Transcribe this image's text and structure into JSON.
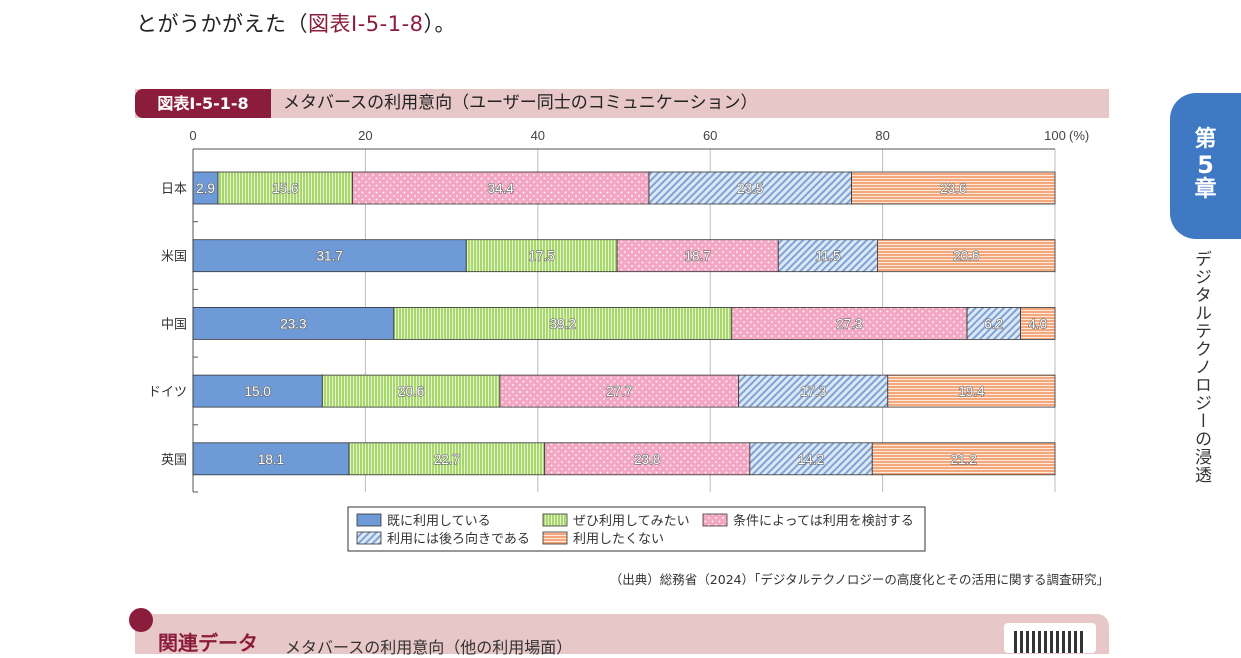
{
  "intro": {
    "text": "とがうかがえた（",
    "ref": "図表Ⅰ-5-1-8",
    "tail": "）。"
  },
  "figure": {
    "badge": "図表Ⅰ-5-1-8",
    "title": "メタバースの利用意向（ユーザー同士のコミュニケーション）"
  },
  "source": "（出典）総務省（2024）「デジタルテクノロジーの高度化とその活用に関する調査研究」",
  "chapter": {
    "line1": "第",
    "line2": "5",
    "line3": "章",
    "name": "デジタルテクノロジーの浸透"
  },
  "related": {
    "label": "関連データ",
    "text": "メタバースの利用意向（他の利用場面）"
  },
  "chart_data": {
    "type": "bar",
    "orientation": "horizontal",
    "stacked": true,
    "xlim": [
      0,
      100
    ],
    "xticks": [
      "0",
      "20",
      "40",
      "60",
      "80",
      "100"
    ],
    "unit_label": "(%)",
    "categories": [
      "日本",
      "米国",
      "中国",
      "ドイツ",
      "英国"
    ],
    "series": [
      {
        "name": "既に利用している",
        "color": "#6e9bd8",
        "pattern": "solid",
        "values": [
          2.9,
          31.7,
          23.3,
          15.0,
          18.1
        ]
      },
      {
        "name": "ぜひ利用してみたい",
        "color": "#a8d86b",
        "pattern": "vlines",
        "values": [
          15.6,
          17.5,
          39.2,
          20.6,
          22.7
        ]
      },
      {
        "name": "条件によっては利用を検討する",
        "color": "#f3a7c3",
        "pattern": "dots",
        "values": [
          34.4,
          18.7,
          27.3,
          27.7,
          23.8
        ]
      },
      {
        "name": "利用には後ろ向きである",
        "color": "#a9c3e8",
        "pattern": "diag",
        "values": [
          23.5,
          11.5,
          6.2,
          17.3,
          14.2
        ]
      },
      {
        "name": "利用したくない",
        "color": "#f4a77a",
        "pattern": "hlines",
        "values": [
          23.6,
          20.6,
          4.0,
          19.4,
          21.2
        ]
      }
    ],
    "value_labels": [
      [
        "2.9",
        "15.6",
        "34.4",
        "23.5",
        "23.6"
      ],
      [
        "31.7",
        "17.5",
        "18.7",
        "11.5",
        "20.6"
      ],
      [
        "23.3",
        "39.2",
        "27.3",
        "6.2",
        "4.0"
      ],
      [
        "15.0",
        "20.6",
        "27.7",
        "17.3",
        "19.4"
      ],
      [
        "18.1",
        "22.7",
        "23.8",
        "14.2",
        "21.2"
      ]
    ],
    "grid": true,
    "legend_position": "bottom"
  }
}
